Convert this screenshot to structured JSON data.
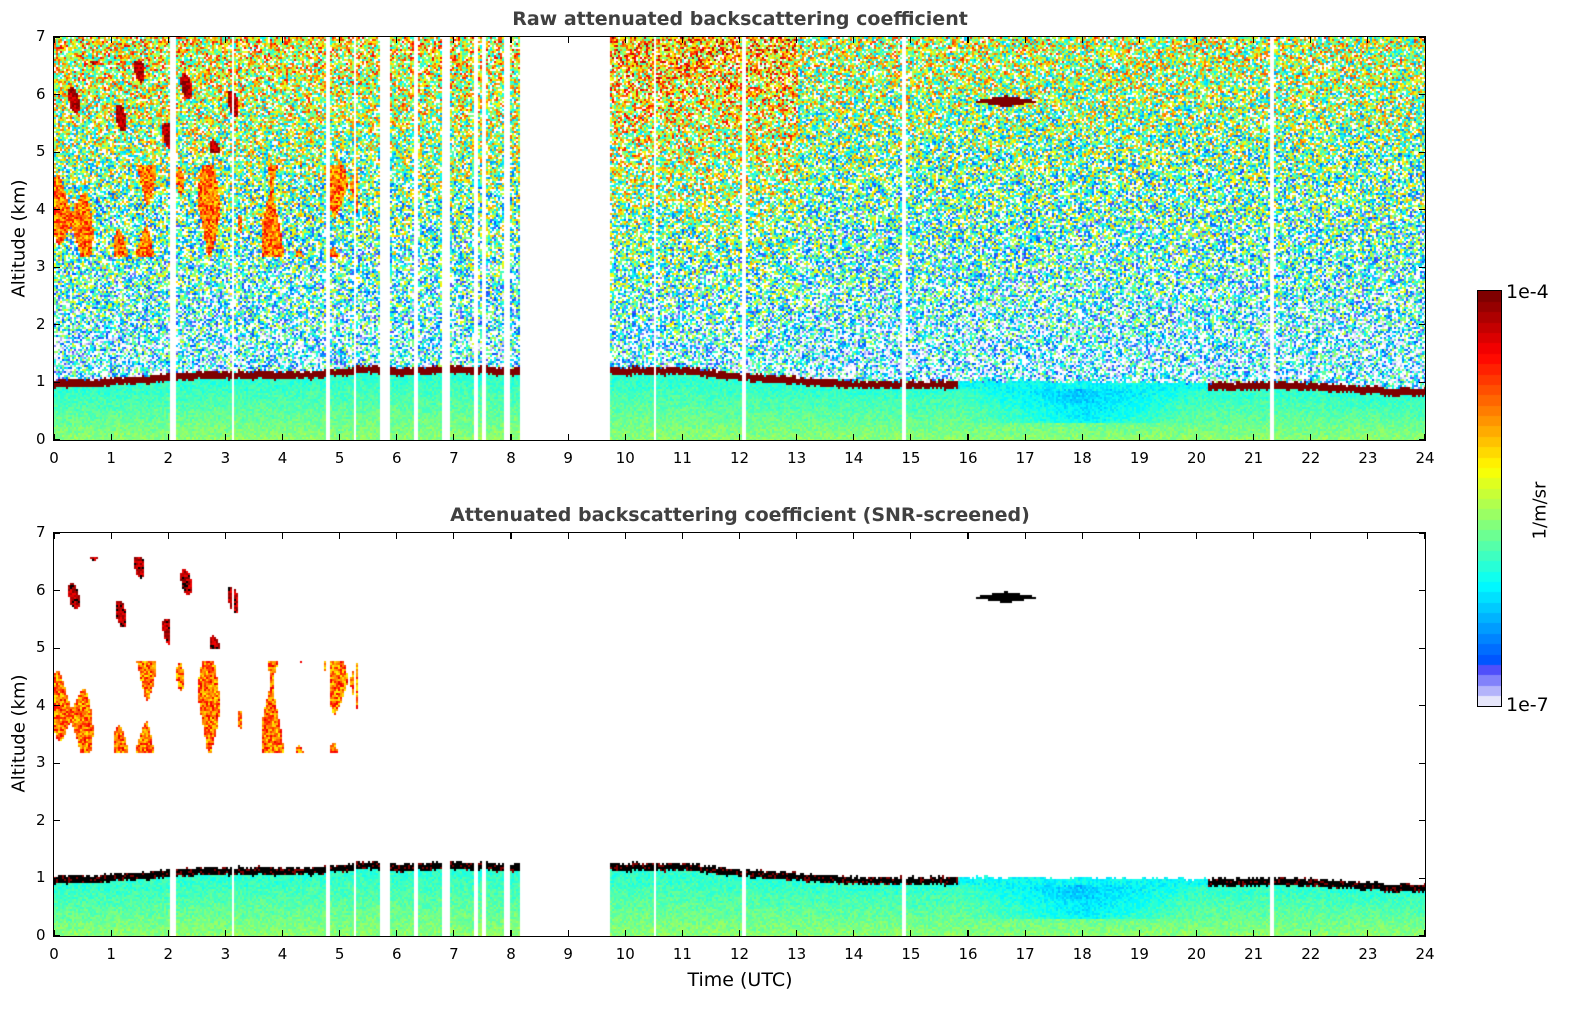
{
  "chart_data": [
    {
      "type": "heatmap",
      "title": "Raw attenuated backscattering coefficient",
      "xlabel": "",
      "ylabel": "Altitude (km)",
      "xlim": [
        0,
        24
      ],
      "ylim": [
        0,
        7
      ],
      "xticks": [
        "0",
        "1",
        "2",
        "3",
        "4",
        "5",
        "6",
        "7",
        "8",
        "9",
        "10",
        "11",
        "12",
        "13",
        "14",
        "15",
        "16",
        "17",
        "18",
        "19",
        "20",
        "21",
        "22",
        "23",
        "24"
      ],
      "yticks": [
        "0",
        "1",
        "2",
        "3",
        "4",
        "5",
        "6",
        "7"
      ],
      "grid": false,
      "screened": false,
      "data_gap_hours": [
        8.15,
        9.7
      ],
      "missing_profiles_hours": [
        2.05,
        2.1,
        3.12,
        4.78,
        5.25,
        5.73,
        5.8,
        5.85,
        6.33,
        6.82,
        6.87,
        7.37,
        7.5,
        7.9,
        7.95,
        10.5,
        12.05,
        14.85,
        21.3
      ],
      "features": [
        {
          "name": "boundary-layer-top",
          "time_hours": [
            0,
            0.6,
            1.9,
            2.5,
            3.5,
            4.5,
            5.0,
            5.5,
            6.0,
            7.0,
            8.15,
            9.7,
            11.0,
            12.0,
            13.0,
            14.0,
            15.0,
            15.8,
            20.2,
            20.5,
            21.5,
            22.5,
            23.5,
            24
          ],
          "altitude_km": [
            1.0,
            1.0,
            1.1,
            1.15,
            1.15,
            1.15,
            1.2,
            1.25,
            1.2,
            1.25,
            1.2,
            1.22,
            1.22,
            1.12,
            1.05,
            0.98,
            0.98,
            0.98,
            0.95,
            0.95,
            0.97,
            0.92,
            0.85,
            0.85
          ]
        },
        {
          "name": "cirrus-5.9km",
          "time_hours": [
            16.1,
            17.2
          ],
          "altitude_km": [
            5.8,
            6.0
          ],
          "log10_backscatter": -4.0
        },
        {
          "name": "mid-level-clouds",
          "time_hours": [
            0,
            5.3
          ],
          "altitude_km": [
            3.2,
            4.8
          ],
          "log10_backscatter": -5.0
        },
        {
          "name": "high-ice-clouds",
          "time_hours": [
            0.2,
            3.2
          ],
          "altitude_km": [
            5.0,
            6.6
          ],
          "log10_backscatter": -4.2
        }
      ]
    },
    {
      "type": "heatmap",
      "title": "Attenuated backscattering coefficient (SNR-screened)",
      "xlabel": "Time (UTC)",
      "ylabel": "Altitude (km)",
      "xlim": [
        0,
        24
      ],
      "ylim": [
        0,
        7
      ],
      "xticks": [
        "0",
        "1",
        "2",
        "3",
        "4",
        "5",
        "6",
        "7",
        "8",
        "9",
        "10",
        "11",
        "12",
        "13",
        "14",
        "15",
        "16",
        "17",
        "18",
        "19",
        "20",
        "21",
        "22",
        "23",
        "24"
      ],
      "yticks": [
        "0",
        "1",
        "2",
        "3",
        "4",
        "5",
        "6",
        "7"
      ],
      "grid": false,
      "screened": true,
      "data_gap_hours": [
        8.15,
        9.7
      ],
      "missing_profiles_hours": [
        2.05,
        2.1,
        3.12,
        4.78,
        5.25,
        5.73,
        5.8,
        5.85,
        6.33,
        6.82,
        6.87,
        7.37,
        7.5,
        7.9,
        7.95,
        10.5,
        12.05,
        14.85,
        21.3
      ],
      "features": [
        {
          "name": "boundary-layer-top",
          "time_hours": [
            0,
            0.6,
            1.9,
            2.5,
            3.5,
            4.5,
            5.0,
            5.5,
            6.0,
            7.0,
            8.15,
            9.7,
            11.0,
            12.0,
            13.0,
            14.0,
            15.0,
            15.8,
            20.2,
            20.5,
            21.5,
            22.5,
            23.5,
            24
          ],
          "altitude_km": [
            1.0,
            1.0,
            1.1,
            1.15,
            1.15,
            1.15,
            1.2,
            1.25,
            1.2,
            1.25,
            1.2,
            1.22,
            1.22,
            1.12,
            1.05,
            0.98,
            0.98,
            0.98,
            0.95,
            0.95,
            0.97,
            0.92,
            0.85,
            0.85
          ]
        },
        {
          "name": "cirrus-5.9km",
          "time_hours": [
            16.1,
            17.2
          ],
          "altitude_km": [
            5.8,
            6.0
          ],
          "log10_backscatter": -3.5
        },
        {
          "name": "mid-level-clouds",
          "time_hours": [
            0,
            5.3
          ],
          "altitude_km": [
            3.2,
            4.8
          ],
          "log10_backscatter": -5.0
        },
        {
          "name": "high-ice-clouds",
          "time_hours": [
            0.2,
            3.2
          ],
          "altitude_km": [
            5.0,
            6.6
          ],
          "log10_backscatter": -4.2
        }
      ]
    }
  ],
  "colorbar": {
    "max_label": "1e-4",
    "min_label": "1e-7",
    "unit": "1/m/sr",
    "min_log10": -7,
    "max_log10": -4,
    "colormap": "jet",
    "saturated_color_screened": "#000000"
  }
}
